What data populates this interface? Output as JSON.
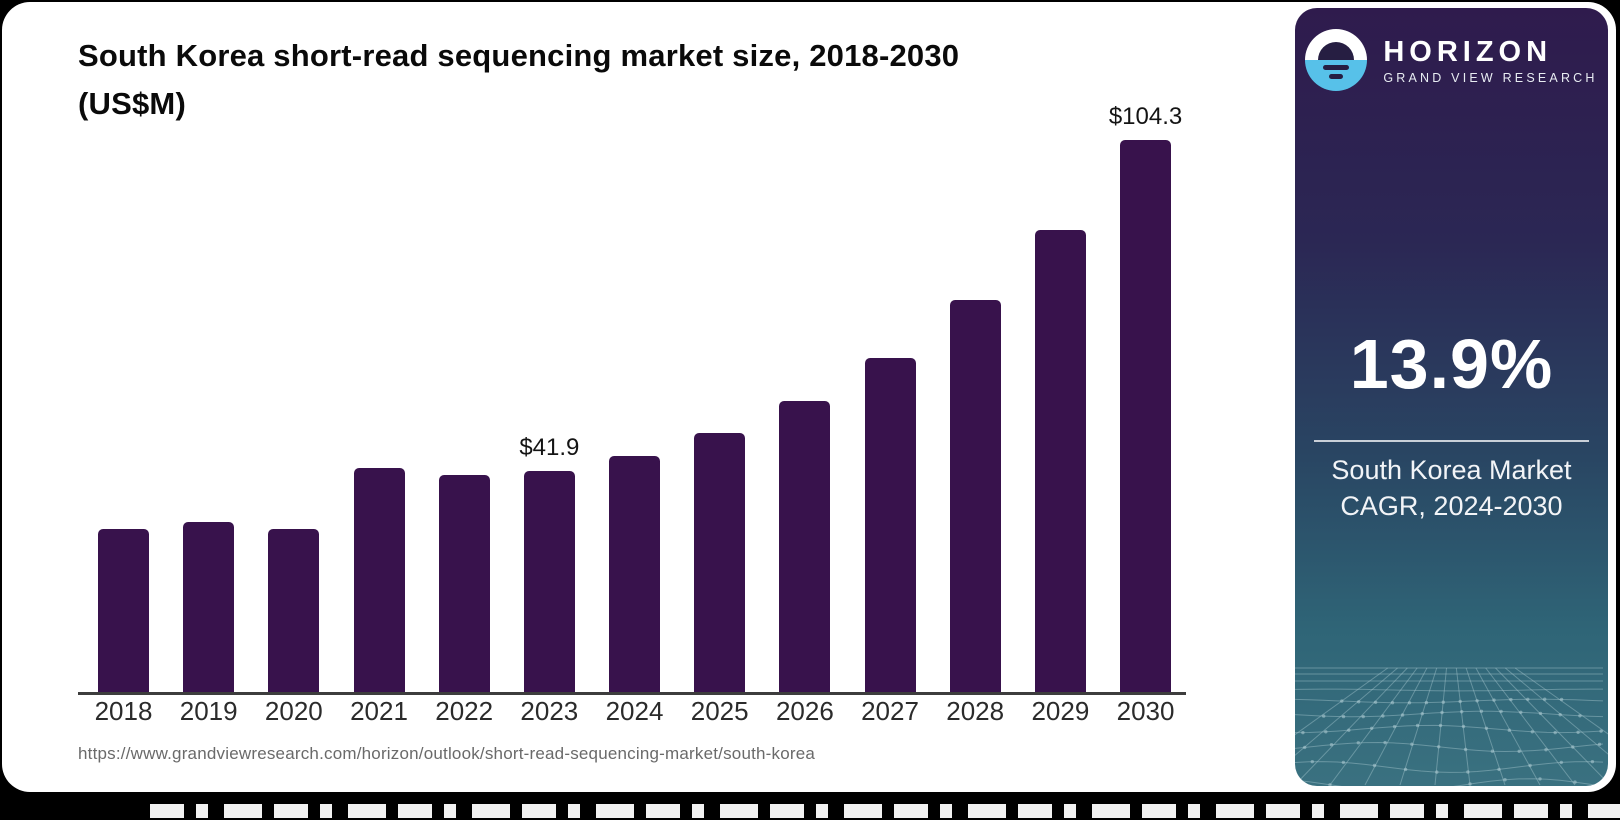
{
  "chart": {
    "title_line1": "South Korea short-read sequencing market size, 2018-2030",
    "title_line2": "(US$M)",
    "source_url": "https://www.grandviewresearch.com/horizon/outlook/short-read-sequencing-market/south-korea",
    "bar_color": "#38124C",
    "axis_color": "#3D3D3D"
  },
  "chart_data": {
    "type": "bar",
    "title": "South Korea short-read sequencing market size, 2018-2030 (US$M)",
    "xlabel": "Year",
    "ylabel": "Market size (US$M)",
    "categories": [
      "2018",
      "2019",
      "2020",
      "2021",
      "2022",
      "2023",
      "2024",
      "2025",
      "2026",
      "2027",
      "2028",
      "2029",
      "2030"
    ],
    "values": [
      30.9,
      32.3,
      30.9,
      42.4,
      41.2,
      41.9,
      44.7,
      49.1,
      55.1,
      63.1,
      74.1,
      87.3,
      104.3
    ],
    "data_labels": [
      {
        "index": 5,
        "text": "$41.9"
      },
      {
        "index": 12,
        "text": "$104.3"
      }
    ],
    "ylim": [
      0,
      110
    ],
    "grid": false,
    "legend": false,
    "bar_color": "#38124C"
  },
  "sidebar": {
    "brand": {
      "name": "HORIZON",
      "subtitle": "GRAND VIEW RESEARCH"
    },
    "stat": {
      "value": "13.9%",
      "line1": "South Korea Market",
      "line2": "CAGR, 2024-2030"
    },
    "colors": {
      "gradient_top": "#2F1B4D",
      "gradient_mid": "#294663",
      "gradient_bottom": "#3A7180",
      "logo_blue": "#57C1E9",
      "mesh_line": "#AECCD3"
    }
  }
}
